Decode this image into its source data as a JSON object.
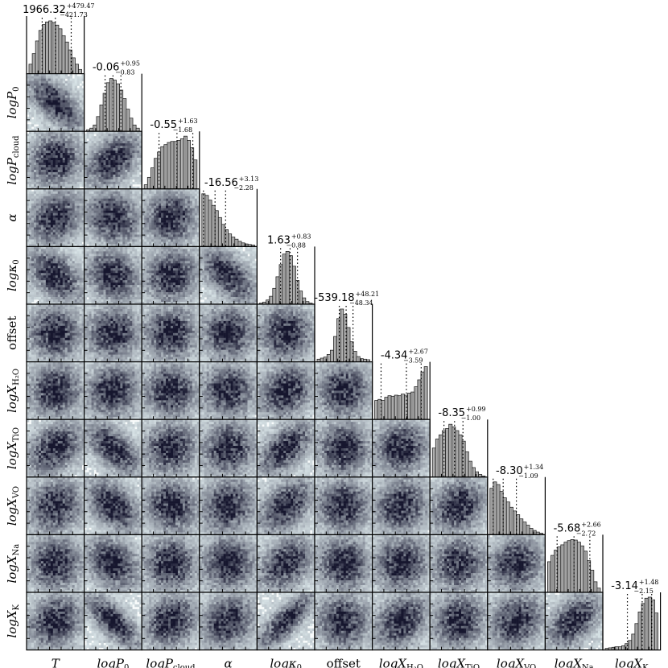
{
  "chart_data": {
    "type": "corner",
    "parameters": [
      {
        "key": "T",
        "label_main": "T",
        "label_sub": "",
        "median": "1966.32",
        "plus": "+479.47",
        "minus": "−421.73"
      },
      {
        "key": "logP0",
        "label_main": "logP",
        "label_sub": "0",
        "median": "-0.06",
        "plus": "+0.95",
        "minus": "−0.83"
      },
      {
        "key": "logPcloud",
        "label_main": "logP",
        "label_sub": "cloud",
        "median": "-0.55",
        "plus": "+1.63",
        "minus": "−1.68"
      },
      {
        "key": "alpha",
        "label_main": "α",
        "label_sub": "",
        "median": "-16.56",
        "plus": "+3.13",
        "minus": "−2.28"
      },
      {
        "key": "logkappa0",
        "label_main": "logκ",
        "label_sub": "0",
        "median": "1.63",
        "plus": "+0.83",
        "minus": "−0.88"
      },
      {
        "key": "offset",
        "label_main": "offset",
        "label_sub": "",
        "median": "-539.18",
        "plus": "+48.21",
        "minus": "−48.34"
      },
      {
        "key": "logXH2O",
        "label_main": "logX",
        "label_sub": "H₂O",
        "median": "-4.34",
        "plus": "+2.67",
        "minus": "−3.59"
      },
      {
        "key": "logXTiO",
        "label_main": "logX",
        "label_sub": "TiO",
        "median": "-8.35",
        "plus": "+0.99",
        "minus": "−1.00"
      },
      {
        "key": "logXVO",
        "label_main": "logX",
        "label_sub": "VO",
        "median": "-8.30",
        "plus": "+1.34",
        "minus": "−1.09"
      },
      {
        "key": "logXNa",
        "label_main": "logX",
        "label_sub": "Na",
        "median": "-5.68",
        "plus": "+2.66",
        "minus": "−2.72"
      },
      {
        "key": "logXK",
        "label_main": "logX",
        "label_sub": "K",
        "median": "-3.14",
        "plus": "+1.48",
        "minus": "−2.15"
      }
    ],
    "histograms": [
      [
        0.18,
        0.38,
        0.62,
        0.82,
        0.93,
        0.98,
        1.0,
        0.97,
        0.92,
        0.85,
        0.72,
        0.6,
        0.45,
        0.3,
        0.18,
        0.08
      ],
      [
        0.03,
        0.06,
        0.12,
        0.28,
        0.5,
        0.72,
        0.92,
        1.0,
        0.97,
        0.9,
        0.78,
        0.62,
        0.42,
        0.25,
        0.12,
        0.06
      ],
      [
        0.08,
        0.22,
        0.4,
        0.58,
        0.7,
        0.8,
        0.84,
        0.88,
        0.9,
        0.9,
        0.92,
        0.95,
        1.0,
        0.92,
        0.78,
        0.55
      ],
      [
        1.0,
        0.97,
        0.88,
        0.78,
        0.68,
        0.55,
        0.42,
        0.32,
        0.24,
        0.18,
        0.14,
        0.1,
        0.07,
        0.05,
        0.04,
        0.03
      ],
      [
        0.02,
        0.04,
        0.08,
        0.15,
        0.3,
        0.52,
        0.75,
        0.95,
        1.0,
        0.92,
        0.72,
        0.45,
        0.25,
        0.12,
        0.05,
        0.02
      ],
      [
        0.05,
        0.07,
        0.09,
        0.14,
        0.22,
        0.48,
        0.82,
        1.0,
        0.9,
        0.65,
        0.38,
        0.2,
        0.1,
        0.06,
        0.05,
        0.04
      ],
      [
        0.36,
        0.38,
        0.36,
        0.42,
        0.45,
        0.44,
        0.46,
        0.45,
        0.48,
        0.46,
        0.5,
        0.52,
        0.62,
        0.75,
        0.9,
        1.0
      ],
      [
        0.55,
        0.72,
        0.8,
        0.88,
        0.92,
        1.0,
        0.95,
        0.88,
        0.8,
        0.68,
        0.48,
        0.3,
        0.18,
        0.1,
        0.05,
        0.02
      ],
      [
        0.88,
        1.0,
        0.95,
        0.82,
        0.7,
        0.62,
        0.52,
        0.45,
        0.38,
        0.3,
        0.24,
        0.18,
        0.12,
        0.08,
        0.05,
        0.03
      ],
      [
        0.58,
        0.7,
        0.8,
        0.86,
        0.9,
        0.95,
        0.98,
        1.0,
        0.99,
        0.95,
        0.88,
        0.78,
        0.6,
        0.42,
        0.2,
        0.08
      ],
      [
        0.03,
        0.04,
        0.05,
        0.06,
        0.06,
        0.08,
        0.12,
        0.18,
        0.3,
        0.5,
        0.72,
        0.88,
        0.98,
        1.0,
        0.95,
        0.7
      ]
    ],
    "quantile_markers": [
      [
        0.25,
        0.5,
        0.8
      ],
      [
        0.35,
        0.5,
        0.65
      ],
      [
        0.28,
        0.62,
        0.92
      ],
      [
        0.03,
        0.25,
        0.45
      ],
      [
        0.4,
        0.58,
        0.72
      ],
      [
        0.42,
        0.55,
        0.68
      ],
      [
        0.12,
        0.6,
        0.88
      ],
      [
        0.22,
        0.42,
        0.58
      ],
      [
        0.06,
        0.25,
        0.5
      ],
      [
        0.18,
        0.5,
        0.8
      ],
      [
        0.42,
        0.7,
        0.88
      ]
    ],
    "correlations": [
      [
        0,
        0,
        0,
        0,
        0,
        0,
        0,
        0,
        0,
        0,
        0
      ],
      [
        -0.65,
        0,
        0,
        0,
        0,
        0,
        0,
        0,
        0,
        0,
        0
      ],
      [
        0.1,
        0.45,
        0,
        0,
        0,
        0,
        0,
        0,
        0,
        0,
        0
      ],
      [
        0.25,
        -0.15,
        0.05,
        0,
        0,
        0,
        0,
        0,
        0,
        0,
        0
      ],
      [
        -0.45,
        -0.2,
        0.1,
        -0.55,
        0,
        0,
        0,
        0,
        0,
        0,
        0
      ],
      [
        0.0,
        0.0,
        0.0,
        0.0,
        0.0,
        0,
        0,
        0,
        0,
        0,
        0
      ],
      [
        0.05,
        0.1,
        0.0,
        0.0,
        0.2,
        0.0,
        0,
        0,
        0,
        0,
        0
      ],
      [
        0.35,
        -0.6,
        0.1,
        0.1,
        0.55,
        0.0,
        0.1,
        0,
        0,
        0,
        0
      ],
      [
        0.1,
        -0.45,
        -0.1,
        0.1,
        0.45,
        0.0,
        0.1,
        0.2,
        0,
        0,
        0
      ],
      [
        0.0,
        -0.3,
        0.0,
        0.05,
        0.35,
        0.0,
        0.05,
        0.1,
        0.1,
        0,
        0
      ],
      [
        0.2,
        -0.75,
        0.15,
        0.2,
        0.8,
        0.0,
        0.3,
        0.1,
        0.2,
        0.5,
        0
      ]
    ],
    "colors": {
      "hist_fill": "#b4b4b4",
      "hist_edge": "#222222",
      "density_dark": "#16162e",
      "density_light": "#e4f0f2"
    },
    "grid": false,
    "legend": "none"
  }
}
